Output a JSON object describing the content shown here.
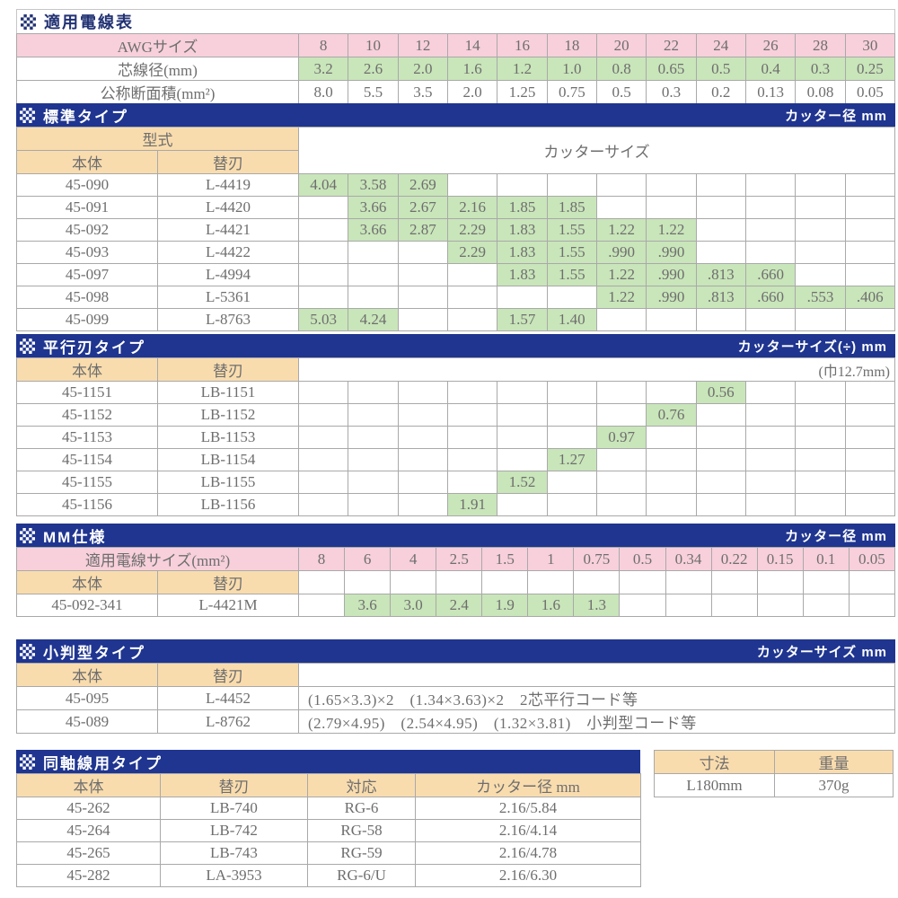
{
  "colors": {
    "section_bar_navy": "#1f3590",
    "title_navy": "#223273",
    "pink": "#f7d0db",
    "green": "#c9e5ba",
    "tan": "#f9dcae",
    "text_gray": "#6e6e6e",
    "border_gray": "#a9a9a9"
  },
  "wire_table": {
    "title": "適用電線表",
    "rows": [
      {
        "label": "AWGサイズ",
        "style": "pink",
        "values": [
          "8",
          "10",
          "12",
          "14",
          "16",
          "18",
          "20",
          "22",
          "24",
          "26",
          "28",
          "30"
        ]
      },
      {
        "label": "芯線径(mm)",
        "style": "green",
        "values": [
          "3.2",
          "2.6",
          "2.0",
          "1.6",
          "1.2",
          "1.0",
          "0.8",
          "0.65",
          "0.5",
          "0.4",
          "0.3",
          "0.25"
        ]
      },
      {
        "label": "公称断面積(mm²)",
        "style": "plain",
        "values": [
          "8.0",
          "5.5",
          "3.5",
          "2.0",
          "1.25",
          "0.75",
          "0.5",
          "0.3",
          "0.2",
          "0.13",
          "0.08",
          "0.05"
        ]
      }
    ]
  },
  "standard": {
    "title": "標準タイプ",
    "unit": "カッター径 mm",
    "model_header": "型式",
    "body_header": "本体",
    "blade_header": "替刃",
    "size_header": "カッターサイズ",
    "rows": [
      {
        "body": "45-090",
        "blade": "L-4419",
        "values": [
          "4.04",
          "3.58",
          "2.69",
          "",
          "",
          "",
          "",
          "",
          "",
          "",
          "",
          ""
        ]
      },
      {
        "body": "45-091",
        "blade": "L-4420",
        "values": [
          "",
          "3.66",
          "2.67",
          "2.16",
          "1.85",
          "1.85",
          "",
          "",
          "",
          "",
          "",
          ""
        ]
      },
      {
        "body": "45-092",
        "blade": "L-4421",
        "values": [
          "",
          "3.66",
          "2.87",
          "2.29",
          "1.83",
          "1.55",
          "1.22",
          "1.22",
          "",
          "",
          "",
          ""
        ]
      },
      {
        "body": "45-093",
        "blade": "L-4422",
        "values": [
          "",
          "",
          "",
          "2.29",
          "1.83",
          "1.55",
          ".990",
          ".990",
          "",
          "",
          "",
          ""
        ]
      },
      {
        "body": "45-097",
        "blade": "L-4994",
        "values": [
          "",
          "",
          "",
          "",
          "1.83",
          "1.55",
          "1.22",
          ".990",
          ".813",
          ".660",
          "",
          ""
        ]
      },
      {
        "body": "45-098",
        "blade": "L-5361",
        "values": [
          "",
          "",
          "",
          "",
          "",
          "",
          "1.22",
          ".990",
          ".813",
          ".660",
          ".553",
          ".406"
        ]
      },
      {
        "body": "45-099",
        "blade": "L-8763",
        "values": [
          "5.03",
          "4.24",
          "",
          "",
          "1.57",
          "1.40",
          "",
          "",
          "",
          "",
          "",
          ""
        ]
      }
    ]
  },
  "parallel": {
    "title": "平行刃タイプ",
    "unit": "カッターサイズ(÷) mm",
    "width_note": "(巾12.7mm)",
    "body_header": "本体",
    "blade_header": "替刃",
    "rows": [
      {
        "body": "45-1151",
        "blade": "LB-1151",
        "values": [
          "",
          "",
          "",
          "",
          "",
          "",
          "",
          "",
          "0.56",
          "",
          "",
          ""
        ]
      },
      {
        "body": "45-1152",
        "blade": "LB-1152",
        "values": [
          "",
          "",
          "",
          "",
          "",
          "",
          "",
          "0.76",
          "",
          "",
          "",
          ""
        ]
      },
      {
        "body": "45-1153",
        "blade": "LB-1153",
        "values": [
          "",
          "",
          "",
          "",
          "",
          "",
          "0.97",
          "",
          "",
          "",
          "",
          ""
        ]
      },
      {
        "body": "45-1154",
        "blade": "LB-1154",
        "values": [
          "",
          "",
          "",
          "",
          "",
          "1.27",
          "",
          "",
          "",
          "",
          "",
          ""
        ]
      },
      {
        "body": "45-1155",
        "blade": "LB-1155",
        "values": [
          "",
          "",
          "",
          "",
          "1.52",
          "",
          "",
          "",
          "",
          "",
          "",
          ""
        ]
      },
      {
        "body": "45-1156",
        "blade": "LB-1156",
        "values": [
          "",
          "",
          "",
          "1.91",
          "",
          "",
          "",
          "",
          "",
          "",
          "",
          ""
        ]
      }
    ]
  },
  "mm_spec": {
    "title": "MM仕様",
    "unit": "カッター径 mm",
    "size_label": "適用電線サイズ(mm²)",
    "body_header": "本体",
    "blade_header": "替刃",
    "sizes": [
      "8",
      "6",
      "4",
      "2.5",
      "1.5",
      "1",
      "0.75",
      "0.5",
      "0.34",
      "0.22",
      "0.15",
      "0.1",
      "0.05"
    ],
    "rows": [
      {
        "body": "45-092-341",
        "blade": "L-4421M",
        "values": [
          "",
          "3.6",
          "3.0",
          "2.4",
          "1.9",
          "1.6",
          "1.3",
          "",
          "",
          "",
          "",
          "",
          ""
        ]
      }
    ]
  },
  "oval": {
    "title": "小判型タイプ",
    "unit": "カッターサイズ mm",
    "body_header": "本体",
    "blade_header": "替刃",
    "rows": [
      {
        "body": "45-095",
        "blade": "L-4452",
        "spec": "(1.65×3.3)×2　(1.34×3.63)×2　2芯平行コード等"
      },
      {
        "body": "45-089",
        "blade": "L-8762",
        "spec": "(2.79×4.95)　(2.54×4.95)　(1.32×3.81)　小判型コード等"
      }
    ]
  },
  "coaxial": {
    "title": "同軸線用タイプ",
    "headers": [
      "本体",
      "替刃",
      "対応",
      "カッター径 mm"
    ],
    "rows": [
      [
        "45-262",
        "LB-740",
        "RG-6",
        "2.16/5.84"
      ],
      [
        "45-264",
        "LB-742",
        "RG-58",
        "2.16/4.14"
      ],
      [
        "45-265",
        "LB-743",
        "RG-59",
        "2.16/4.78"
      ],
      [
        "45-282",
        "LA-3953",
        "RG-6/U",
        "2.16/6.30"
      ]
    ],
    "info": {
      "dim_header": "寸法",
      "weight_header": "重量",
      "dim_value": "L180mm",
      "weight_value": "370g"
    }
  }
}
